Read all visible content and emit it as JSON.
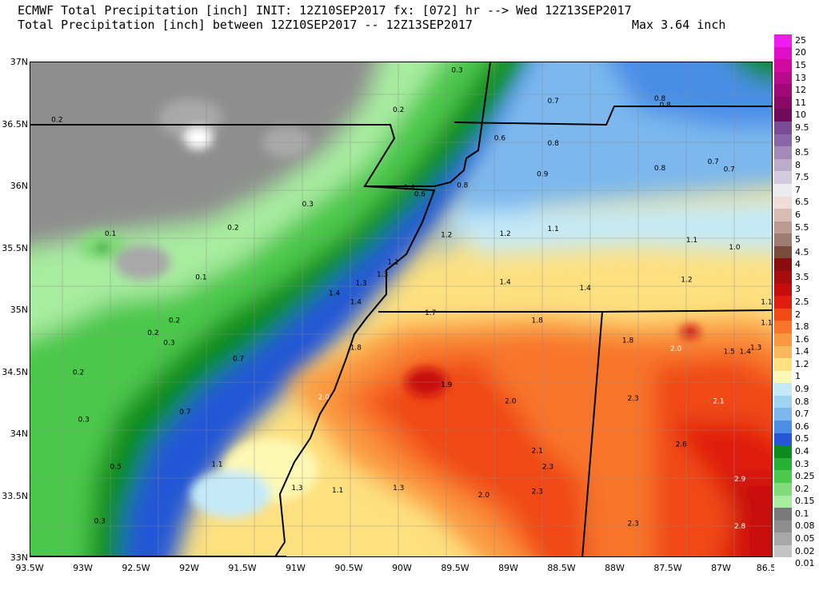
{
  "header": {
    "line1": "ECMWF Total Precipitation [inch] INIT: 12Z10SEP2017 fx: [072] hr --> Wed 12Z13SEP2017",
    "line2": "Total Precipitation [inch] between 12Z10SEP2017 -- 12Z13SEP2017",
    "max_label": "Max 3.64 inch"
  },
  "axes": {
    "lat_labels": [
      "37N",
      "36.5N",
      "36N",
      "35.5N",
      "35N",
      "34.5N",
      "34N",
      "33.5N",
      "33N"
    ],
    "lon_labels": [
      "93.5W",
      "93W",
      "92.5W",
      "92W",
      "91.5W",
      "91W",
      "90.5W",
      "90W",
      "89.5W",
      "89W",
      "88.5W",
      "88W",
      "87.5W",
      "87W",
      "86.5"
    ]
  },
  "legend": {
    "items": [
      {
        "label": "25",
        "color": "#f01bf0"
      },
      {
        "label": "20",
        "color": "#e00ec8"
      },
      {
        "label": "15",
        "color": "#d00a9e"
      },
      {
        "label": "13",
        "color": "#b80a8c"
      },
      {
        "label": "12",
        "color": "#a00a78"
      },
      {
        "label": "11",
        "color": "#8a0866"
      },
      {
        "label": "10",
        "color": "#720a5c"
      },
      {
        "label": "9.5",
        "color": "#7a4c96"
      },
      {
        "label": "9",
        "color": "#8a66a8"
      },
      {
        "label": "8.5",
        "color": "#a48ab8"
      },
      {
        "label": "8",
        "color": "#bcaccc"
      },
      {
        "label": "7.5",
        "color": "#d4cade"
      },
      {
        "label": "7",
        "color": "#ecebef"
      },
      {
        "label": "6.5",
        "color": "#f0dcd8"
      },
      {
        "label": "6",
        "color": "#d8bcb4"
      },
      {
        "label": "5.5",
        "color": "#bc9c92"
      },
      {
        "label": "5",
        "color": "#9e7c70"
      },
      {
        "label": "4.5",
        "color": "#7a4a3a"
      },
      {
        "label": "4",
        "color": "#8a0c0c"
      },
      {
        "label": "3.5",
        "color": "#a80c0c"
      },
      {
        "label": "3",
        "color": "#c80c0c"
      },
      {
        "label": "2.5",
        "color": "#e01e10"
      },
      {
        "label": "2",
        "color": "#f04a12"
      },
      {
        "label": "1.8",
        "color": "#f8742a"
      },
      {
        "label": "1.6",
        "color": "#fa9a40"
      },
      {
        "label": "1.4",
        "color": "#fcb85a"
      },
      {
        "label": "1.2",
        "color": "#fde080"
      },
      {
        "label": "1",
        "color": "#fdf8b4"
      },
      {
        "label": "0.9",
        "color": "#c4eaf8"
      },
      {
        "label": "0.8",
        "color": "#9fd3f2"
      },
      {
        "label": "0.7",
        "color": "#7cb8ee"
      },
      {
        "label": "0.6",
        "color": "#4a8ee6"
      },
      {
        "label": "0.5",
        "color": "#2456d6"
      },
      {
        "label": "0.4",
        "color": "#0c8c1c"
      },
      {
        "label": "0.3",
        "color": "#26b034"
      },
      {
        "label": "0.25",
        "color": "#4cc84c"
      },
      {
        "label": "0.2",
        "color": "#80dc78"
      },
      {
        "label": "0.15",
        "color": "#a8eca0"
      },
      {
        "label": "0.1",
        "color": "#7a7a7a"
      },
      {
        "label": "0.08",
        "color": "#8e8e8e"
      },
      {
        "label": "0.05",
        "color": "#a8a8a8"
      },
      {
        "label": "0.02",
        "color": "#c4c4c4"
      },
      {
        "label": "0.01",
        "color": "#ffffff"
      }
    ]
  },
  "map": {
    "contour_labels": [
      {
        "text": "0.3",
        "lon": -89.5,
        "lat": 36.92,
        "color": "#000000"
      },
      {
        "text": "0.2",
        "lon": -93.25,
        "lat": 36.52,
        "color": "#000000"
      },
      {
        "text": "0.2",
        "lon": -90.05,
        "lat": 36.6,
        "color": "#000000"
      },
      {
        "text": "0.7",
        "lon": -88.6,
        "lat": 36.67,
        "color": "#000000"
      },
      {
        "text": "0.8",
        "lon": -87.6,
        "lat": 36.69,
        "color": "#000000"
      },
      {
        "text": "0.8",
        "lon": -87.55,
        "lat": 36.64,
        "color": "#000000"
      },
      {
        "text": "0.6",
        "lon": -89.1,
        "lat": 36.37,
        "color": "#000000"
      },
      {
        "text": "0.8",
        "lon": -88.6,
        "lat": 36.33,
        "color": "#000000"
      },
      {
        "text": "0.9",
        "lon": -88.7,
        "lat": 36.08,
        "color": "#000000"
      },
      {
        "text": "0.8",
        "lon": -87.6,
        "lat": 36.13,
        "color": "#000000"
      },
      {
        "text": "0.7",
        "lon": -87.1,
        "lat": 36.18,
        "color": "#000000"
      },
      {
        "text": "0.7",
        "lon": -86.95,
        "lat": 36.12,
        "color": "#000000"
      },
      {
        "text": "0.8",
        "lon": -89.45,
        "lat": 35.99,
        "color": "#000000"
      },
      {
        "text": "0.4",
        "lon": -89.95,
        "lat": 35.97,
        "color": "#000000"
      },
      {
        "text": "0.6",
        "lon": -89.85,
        "lat": 35.92,
        "color": "#000000"
      },
      {
        "text": "0.3",
        "lon": -90.9,
        "lat": 35.84,
        "color": "#000000"
      },
      {
        "text": "0.2",
        "lon": -91.6,
        "lat": 35.65,
        "color": "#000000"
      },
      {
        "text": "0.1",
        "lon": -92.75,
        "lat": 35.6,
        "color": "#000000"
      },
      {
        "text": "1.2",
        "lon": -89.6,
        "lat": 35.59,
        "color": "#000000"
      },
      {
        "text": "1.2",
        "lon": -89.05,
        "lat": 35.6,
        "color": "#000000"
      },
      {
        "text": "1.1",
        "lon": -88.6,
        "lat": 35.64,
        "color": "#000000"
      },
      {
        "text": "1.1",
        "lon": -87.3,
        "lat": 35.55,
        "color": "#000000"
      },
      {
        "text": "1.0",
        "lon": -86.9,
        "lat": 35.49,
        "color": "#000000"
      },
      {
        "text": "1.1",
        "lon": -90.1,
        "lat": 35.37,
        "color": "#000000"
      },
      {
        "text": "1.3",
        "lon": -90.2,
        "lat": 35.27,
        "color": "#000000"
      },
      {
        "text": "1.3",
        "lon": -90.4,
        "lat": 35.2,
        "color": "#000000"
      },
      {
        "text": "0.1",
        "lon": -91.9,
        "lat": 35.25,
        "color": "#000000"
      },
      {
        "text": "1.4",
        "lon": -89.05,
        "lat": 35.21,
        "color": "#000000"
      },
      {
        "text": "1.4",
        "lon": -88.3,
        "lat": 35.16,
        "color": "#000000"
      },
      {
        "text": "1.2",
        "lon": -87.35,
        "lat": 35.23,
        "color": "#000000"
      },
      {
        "text": "1.4",
        "lon": -90.65,
        "lat": 35.12,
        "color": "#000000"
      },
      {
        "text": "1.4",
        "lon": -90.45,
        "lat": 35.05,
        "color": "#000000"
      },
      {
        "text": "1.1",
        "lon": -86.6,
        "lat": 35.05,
        "color": "#000000"
      },
      {
        "text": "1.7",
        "lon": -89.75,
        "lat": 34.96,
        "color": "#000000"
      },
      {
        "text": "1.8",
        "lon": -88.75,
        "lat": 34.9,
        "color": "#000000"
      },
      {
        "text": "1.1",
        "lon": -86.6,
        "lat": 34.88,
        "color": "#000000"
      },
      {
        "text": "0.2",
        "lon": -92.15,
        "lat": 34.9,
        "color": "#000000"
      },
      {
        "text": "0.2",
        "lon": -92.35,
        "lat": 34.8,
        "color": "#000000"
      },
      {
        "text": "0.3",
        "lon": -92.2,
        "lat": 34.72,
        "color": "#000000"
      },
      {
        "text": "1.8",
        "lon": -87.9,
        "lat": 34.74,
        "color": "#000000"
      },
      {
        "text": "2.0",
        "lon": -87.45,
        "lat": 34.67,
        "color": "#ffffff"
      },
      {
        "text": "1.5",
        "lon": -86.95,
        "lat": 34.65,
        "color": "#000000"
      },
      {
        "text": "1.4",
        "lon": -86.8,
        "lat": 34.65,
        "color": "#000000"
      },
      {
        "text": "1.3",
        "lon": -86.7,
        "lat": 34.68,
        "color": "#000000"
      },
      {
        "text": "1.8",
        "lon": -90.45,
        "lat": 34.68,
        "color": "#000000"
      },
      {
        "text": "0.7",
        "lon": -91.55,
        "lat": 34.59,
        "color": "#000000"
      },
      {
        "text": "0.2",
        "lon": -93.05,
        "lat": 34.48,
        "color": "#000000"
      },
      {
        "text": "1.9",
        "lon": -89.6,
        "lat": 34.38,
        "color": "#000000"
      },
      {
        "text": "2.0",
        "lon": -90.75,
        "lat": 34.28,
        "color": "#ffffff"
      },
      {
        "text": "2.0",
        "lon": -89.0,
        "lat": 34.25,
        "color": "#000000"
      },
      {
        "text": "2.3",
        "lon": -87.85,
        "lat": 34.27,
        "color": "#000000"
      },
      {
        "text": "2.1",
        "lon": -87.05,
        "lat": 34.25,
        "color": "#ffffff"
      },
      {
        "text": "0.7",
        "lon": -92.05,
        "lat": 34.16,
        "color": "#000000"
      },
      {
        "text": "0.3",
        "lon": -93.0,
        "lat": 34.1,
        "color": "#000000"
      },
      {
        "text": "2.1",
        "lon": -88.75,
        "lat": 33.85,
        "color": "#000000"
      },
      {
        "text": "2.6",
        "lon": -87.4,
        "lat": 33.9,
        "color": "#000000"
      },
      {
        "text": "1.1",
        "lon": -91.75,
        "lat": 33.74,
        "color": "#000000"
      },
      {
        "text": "2.3",
        "lon": -88.65,
        "lat": 33.72,
        "color": "#000000"
      },
      {
        "text": "0.5",
        "lon": -92.7,
        "lat": 33.72,
        "color": "#000000"
      },
      {
        "text": "2.9",
        "lon": -86.85,
        "lat": 33.62,
        "color": "#ffffff"
      },
      {
        "text": "1.3",
        "lon": -91.0,
        "lat": 33.55,
        "color": "#000000"
      },
      {
        "text": "1.1",
        "lon": -90.62,
        "lat": 33.53,
        "color": "#000000"
      },
      {
        "text": "1.3",
        "lon": -90.05,
        "lat": 33.55,
        "color": "#000000"
      },
      {
        "text": "2.0",
        "lon": -89.25,
        "lat": 33.49,
        "color": "#000000"
      },
      {
        "text": "2.3",
        "lon": -88.75,
        "lat": 33.52,
        "color": "#000000"
      },
      {
        "text": "0.3",
        "lon": -92.85,
        "lat": 33.28,
        "color": "#000000"
      },
      {
        "text": "2.3",
        "lon": -87.85,
        "lat": 33.26,
        "color": "#000000"
      },
      {
        "text": "2.8",
        "lon": -86.85,
        "lat": 33.24,
        "color": "#ffffff"
      }
    ]
  }
}
